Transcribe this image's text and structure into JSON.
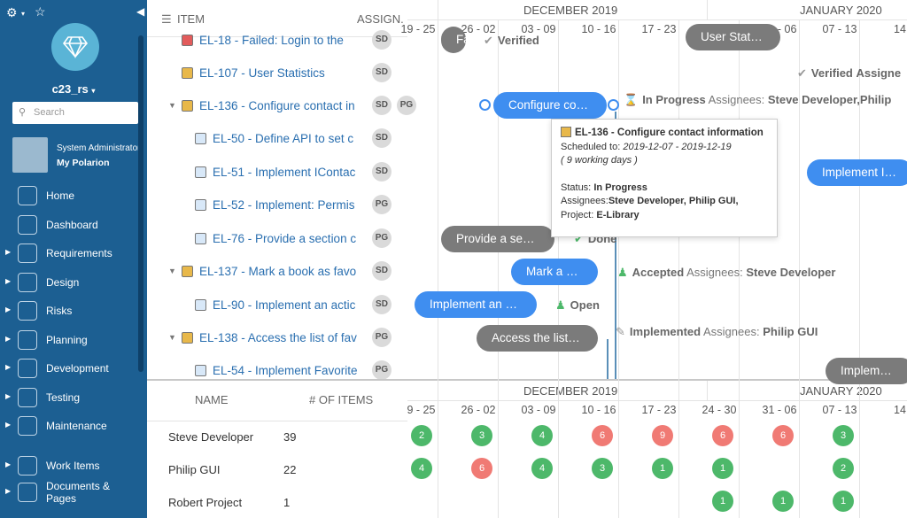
{
  "sidebar": {
    "project": "c23_rs",
    "search_placeholder": "Search",
    "user_role": "System Administrator",
    "user_link": "My Polarion",
    "nav": [
      {
        "label": "Home",
        "icon": "home-icon"
      },
      {
        "label": "Dashboard",
        "icon": "dashboard-icon"
      },
      {
        "label": "Requirements",
        "icon": "requirements-icon"
      },
      {
        "label": "Design",
        "icon": "design-icon"
      },
      {
        "label": "Risks",
        "icon": "risks-icon"
      },
      {
        "label": "Planning",
        "icon": "planning-icon"
      },
      {
        "label": "Development",
        "icon": "development-icon"
      },
      {
        "label": "Testing",
        "icon": "testing-icon"
      },
      {
        "label": "Maintenance",
        "icon": "maintenance-icon"
      },
      {
        "label": "Work Items",
        "icon": "work-items-icon"
      },
      {
        "label": "Documents &",
        "label2": "Pages",
        "icon": "documents-icon"
      }
    ]
  },
  "list": {
    "col_item": "ITEM",
    "col_assign": "ASSIGN.",
    "rows": [
      {
        "label": "EL-18 - Failed: Login to the",
        "assignees": [
          "SD"
        ]
      },
      {
        "label": "EL-107 - User Statistics",
        "assignees": [
          "SD"
        ]
      },
      {
        "label": "EL-136 - Configure contact in",
        "assignees": [
          "SD",
          "PG"
        ]
      },
      {
        "label": "EL-50 - Define API to set c",
        "assignees": [
          "SD"
        ]
      },
      {
        "label": "EL-51 - Implement IContac",
        "assignees": [
          "SD"
        ]
      },
      {
        "label": "EL-52 - Implement: Permis",
        "assignees": [
          "PG"
        ]
      },
      {
        "label": "EL-76 - Provide a section c",
        "assignees": [
          "PG"
        ]
      },
      {
        "label": "EL-137 - Mark a book as favo",
        "assignees": [
          "SD"
        ]
      },
      {
        "label": "EL-90 - Implement an actic",
        "assignees": [
          "SD"
        ]
      },
      {
        "label": "EL-138 - Access the list of fav",
        "assignees": [
          "PG"
        ]
      },
      {
        "label": "EL-54 - Implement Favorite",
        "assignees": [
          "PG"
        ]
      }
    ]
  },
  "timeline": {
    "month1": "DECEMBER 2019",
    "month2": "JANUARY 2020",
    "weeks": [
      "19 - 25",
      "26 - 02",
      "03 - 09",
      "10 - 16",
      "17 - 23",
      "24 - 30",
      "31 - 06",
      "07 - 13",
      "14"
    ],
    "bars": {
      "b0": "Fa",
      "b1": "User Stat…",
      "b2": "Configure co…",
      "b3": "Implement I…",
      "b4": "Provide a se…",
      "b5": "Mark a …",
      "b6": "Implement an …",
      "b7": "Access the list…",
      "b8": "Implem…"
    },
    "status": {
      "s0": "Verified",
      "s1a": "Verified",
      "s1b": "Assigne",
      "s2a": "In Progress",
      "s2b": "Assignees:",
      "s2c": "Steve Developer,Philip",
      "s3": "Done",
      "s4a": "Accepted",
      "s4b": "Assignees:",
      "s4c": "Steve Developer",
      "s5": "Open",
      "s6a": "Implemented",
      "s6b": "Assignees:",
      "s6c": "Philip GUI"
    }
  },
  "tooltip": {
    "title": "EL-136 - Configure contact information",
    "sched_label": "Scheduled to:",
    "sched": "2019-12-07 - 2019-12-19",
    "days": "( 9 working days )",
    "status_label": "Status:",
    "status": "In Progress",
    "assign_label": "Assignees:",
    "assign": "Steve Developer, Philip GUI,",
    "proj_label": "Project:",
    "proj": "E-Library"
  },
  "bottom": {
    "col_name": "NAME",
    "col_items": "# OF ITEMS",
    "people": [
      {
        "name": "Steve Developer",
        "count": "39",
        "loads": [
          "2",
          "3",
          "4",
          "6",
          "9",
          "6",
          "6",
          "3",
          ""
        ]
      },
      {
        "name": "Philip GUI",
        "count": "22",
        "loads": [
          "4",
          "6",
          "4",
          "3",
          "1",
          "1",
          "",
          "2",
          ""
        ]
      },
      {
        "name": "Robert Project",
        "count": "1",
        "loads": [
          "",
          "",
          "",
          "",
          "",
          "1",
          "1",
          "1",
          ""
        ]
      }
    ]
  }
}
